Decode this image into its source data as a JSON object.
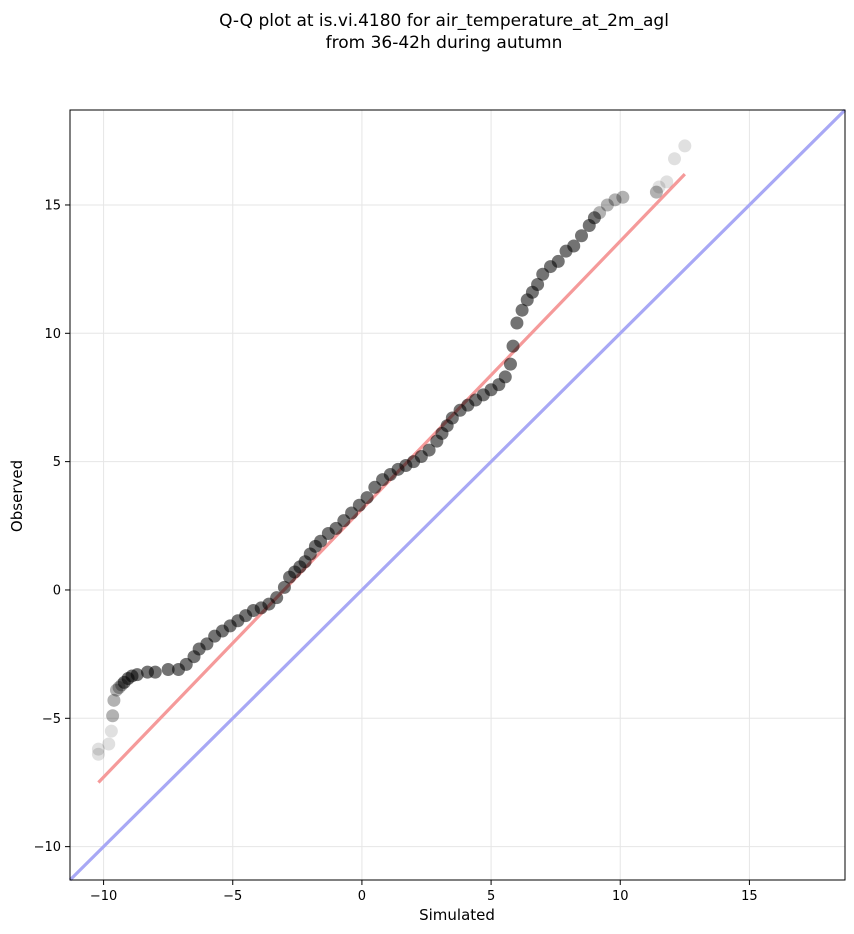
{
  "chart_data": {
    "type": "scatter",
    "title": [
      "Q-Q plot at is.vi.4180 for air_temperature_at_2m_agl",
      "from 36-42h during autumn"
    ],
    "xlabel": "Simulated",
    "ylabel": "Observed",
    "xlim": [
      -11.3,
      18.7
    ],
    "ylim": [
      -11.3,
      18.7
    ],
    "xticks": [
      -10,
      -5,
      0,
      5,
      10,
      15
    ],
    "yticks": [
      -10,
      -5,
      0,
      5,
      10,
      15
    ],
    "xtick_labels": [
      "−10",
      "−5",
      "0",
      "5",
      "10",
      "15"
    ],
    "ytick_labels": [
      "−10",
      "−5",
      "0",
      "5",
      "10",
      "15"
    ],
    "grid": true,
    "series": [
      {
        "kind": "quantile-points",
        "color": "#000000",
        "x": [
          -10.2,
          -10.2,
          -9.8,
          -9.7,
          -9.65,
          -9.6,
          -9.5,
          -9.4,
          -9.3,
          -9.2,
          -9.05,
          -8.9,
          -8.7,
          -8.3,
          -8.0,
          -7.5,
          -7.1,
          -6.8,
          -6.5,
          -6.3,
          -6.0,
          -5.7,
          -5.4,
          -5.1,
          -4.8,
          -4.5,
          -4.2,
          -3.9,
          -3.6,
          -3.3,
          -3.0,
          -2.8,
          -2.6,
          -2.4,
          -2.2,
          -2.0,
          -1.8,
          -1.6,
          -1.3,
          -1.0,
          -0.7,
          -0.4,
          -0.1,
          0.2,
          0.5,
          0.8,
          1.1,
          1.4,
          1.7,
          2.0,
          2.3,
          2.6,
          2.9,
          3.1,
          3.3,
          3.5,
          3.8,
          4.1,
          4.4,
          4.7,
          5.0,
          5.3,
          5.55,
          5.75,
          5.85,
          6.0,
          6.2,
          6.4,
          6.6,
          6.8,
          7.0,
          7.3,
          7.6,
          7.9,
          8.2,
          8.5,
          8.8,
          9.0,
          9.2,
          9.5,
          9.8,
          10.1,
          11.4,
          11.5,
          11.8,
          12.1,
          12.5
        ],
        "y": [
          -6.4,
          -6.2,
          -6.0,
          -5.5,
          -4.9,
          -4.3,
          -3.9,
          -3.8,
          -3.7,
          -3.6,
          -3.45,
          -3.35,
          -3.3,
          -3.2,
          -3.2,
          -3.1,
          -3.1,
          -2.9,
          -2.6,
          -2.3,
          -2.1,
          -1.8,
          -1.6,
          -1.4,
          -1.2,
          -1.0,
          -0.8,
          -0.7,
          -0.55,
          -0.3,
          0.1,
          0.5,
          0.7,
          0.9,
          1.1,
          1.4,
          1.7,
          1.9,
          2.2,
          2.4,
          2.7,
          3.0,
          3.3,
          3.6,
          4.0,
          4.3,
          4.5,
          4.7,
          4.85,
          5.0,
          5.2,
          5.45,
          5.8,
          6.1,
          6.4,
          6.7,
          7.0,
          7.2,
          7.4,
          7.6,
          7.8,
          8.0,
          8.3,
          8.8,
          9.5,
          10.4,
          10.9,
          11.3,
          11.6,
          11.9,
          12.3,
          12.6,
          12.8,
          13.2,
          13.4,
          13.8,
          14.2,
          14.5,
          14.7,
          15.0,
          15.2,
          15.3,
          15.5,
          15.7,
          15.9,
          16.8,
          17.3
        ]
      },
      {
        "kind": "fit-line",
        "color": "#f59a9a",
        "x": [
          -10.2,
          12.5
        ],
        "y": [
          -7.5,
          16.2
        ]
      },
      {
        "kind": "identity-line",
        "color": "#a8a8f5",
        "x": [
          -11.3,
          18.7
        ],
        "y": [
          -11.3,
          18.7
        ]
      }
    ]
  }
}
